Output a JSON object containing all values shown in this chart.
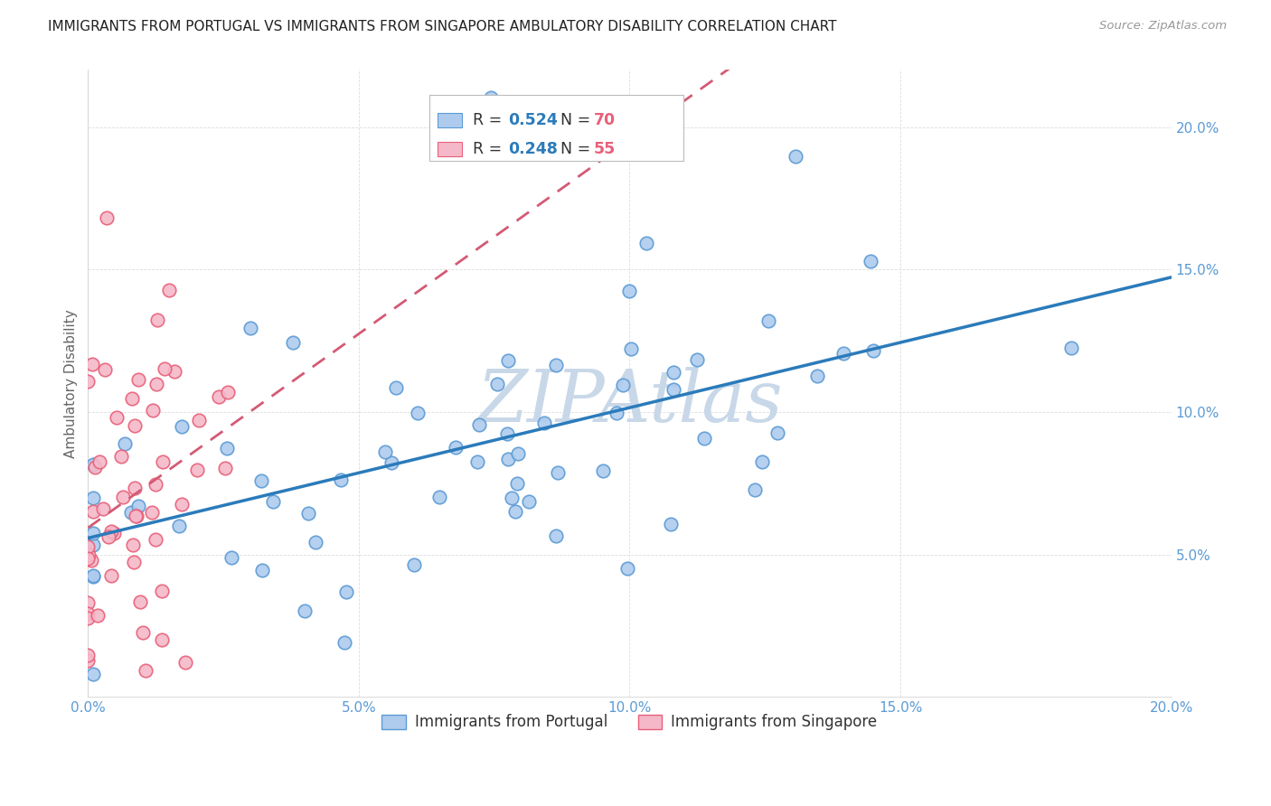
{
  "title": "IMMIGRANTS FROM PORTUGAL VS IMMIGRANTS FROM SINGAPORE AMBULATORY DISABILITY CORRELATION CHART",
  "source": "Source: ZipAtlas.com",
  "ylabel": "Ambulatory Disability",
  "xlim": [
    0.0,
    0.2
  ],
  "ylim": [
    0.0,
    0.22
  ],
  "yticks": [
    0.05,
    0.1,
    0.15,
    0.2
  ],
  "xticks": [
    0.0,
    0.05,
    0.1,
    0.15,
    0.2
  ],
  "ytick_labels": [
    "5.0%",
    "10.0%",
    "15.0%",
    "20.0%"
  ],
  "xtick_labels": [
    "0.0%",
    "5.0%",
    "10.0%",
    "15.0%",
    "20.0%"
  ],
  "portugal_fill_color": "#aecbee",
  "portugal_edge_color": "#5b9bd5",
  "singapore_fill_color": "#f4b8c8",
  "singapore_edge_color": "#e8607a",
  "portugal_line_color": "#2b7bba",
  "singapore_line_color": "#d45a74",
  "tick_color": "#5b9bd5",
  "ylabel_color": "#666666",
  "background_color": "#ffffff",
  "grid_color": "#dddddd",
  "watermark_color": "#c8d8e8",
  "legend_edge_color": "#bbbbbb",
  "legend_R_color": "#2b7bba",
  "legend_N_color": "#e8607a",
  "portugal_R": "0.524",
  "portugal_N": "70",
  "singapore_R": "0.248",
  "singapore_N": "55",
  "portugal_label": "Immigrants from Portugal",
  "singapore_label": "Immigrants from Singapore"
}
